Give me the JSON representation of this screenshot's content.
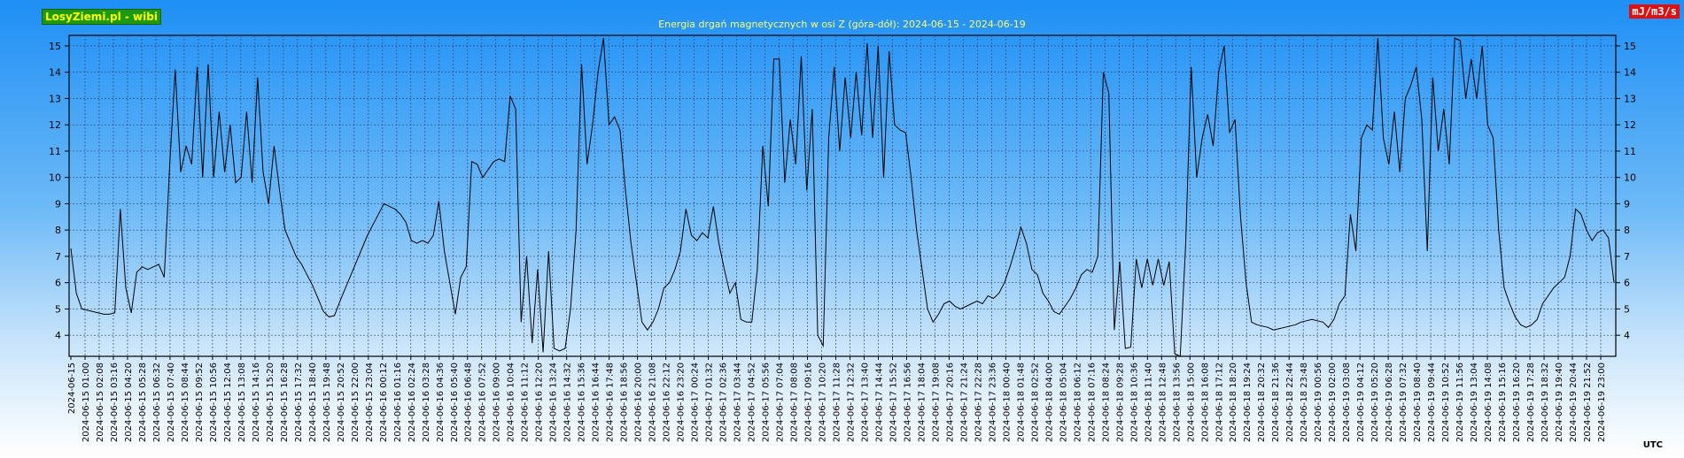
{
  "header": {
    "brand_label": "LosyZiemi.pl - wibi",
    "unit_label": "mJ/m3/s",
    "corner_label": "UTC"
  },
  "colors": {
    "line": "#000000",
    "grid": "#2a4a7a",
    "brand_bg": "#1c9a14",
    "brand_text": "#ffff00",
    "unit_bg": "#e01010",
    "title_text": "#ffff66"
  },
  "chart_data": {
    "type": "line",
    "title": "Energia drgań magnetycznych w osi Z (góra-dół): 2024-06-15 - 2024-06-19",
    "xlabel": "",
    "ylabel": "",
    "ylim": [
      3.2,
      15.4
    ],
    "yticks": [
      4,
      5,
      6,
      7,
      8,
      9,
      10,
      11,
      12,
      13,
      14,
      15
    ],
    "y_axis_right": true,
    "grid": true,
    "xticks": [
      "2024-06-15",
      "2024-06-15 01:00",
      "2024-06-15 02:08",
      "2024-06-15 03:16",
      "2024-06-15 04:20",
      "2024-06-15 05:28",
      "2024-06-15 06:32",
      "2024-06-15 07:40",
      "2024-06-15 08:44",
      "2024-06-15 09:52",
      "2024-06-15 10:56",
      "2024-06-15 12:04",
      "2024-06-15 13:08",
      "2024-06-15 14:16",
      "2024-06-15 15:20",
      "2024-06-15 16:28",
      "2024-06-15 17:32",
      "2024-06-15 18:40",
      "2024-06-15 19:48",
      "2024-06-15 20:52",
      "2024-06-15 22:00",
      "2024-06-15 23:04",
      "2024-06-16 00:12",
      "2024-06-16 01:16",
      "2024-06-16 02:24",
      "2024-06-16 03:28",
      "2024-06-16 04:36",
      "2024-06-16 05:40",
      "2024-06-16 06:48",
      "2024-06-16 07:52",
      "2024-06-16 09:00",
      "2024-06-16 10:04",
      "2024-06-16 11:12",
      "2024-06-16 12:20",
      "2024-06-16 13:24",
      "2024-06-16 14:32",
      "2024-06-16 15:36",
      "2024-06-16 16:44",
      "2024-06-16 17:48",
      "2024-06-16 18:56",
      "2024-06-16 20:00",
      "2024-06-16 21:08",
      "2024-06-16 22:12",
      "2024-06-16 23:20",
      "2024-06-17 00:24",
      "2024-06-17 01:32",
      "2024-06-17 02:36",
      "2024-06-17 03:44",
      "2024-06-17 04:52",
      "2024-06-17 05:56",
      "2024-06-17 07:04",
      "2024-06-17 08:08",
      "2024-06-17 09:16",
      "2024-06-17 10:20",
      "2024-06-17 11:28",
      "2024-06-17 12:32",
      "2024-06-17 13:40",
      "2024-06-17 14:44",
      "2024-06-17 15:52",
      "2024-06-17 16:56",
      "2024-06-17 18:04",
      "2024-06-17 19:08",
      "2024-06-17 20:16",
      "2024-06-17 21:24",
      "2024-06-17 22:28",
      "2024-06-17 23:36",
      "2024-06-18 00:40",
      "2024-06-18 01:48",
      "2024-06-18 02:52",
      "2024-06-18 04:00",
      "2024-06-18 05:04",
      "2024-06-18 06:12",
      "2024-06-18 07:16",
      "2024-06-18 08:24",
      "2024-06-18 09:28",
      "2024-06-18 10:36",
      "2024-06-18 11:40",
      "2024-06-18 12:48",
      "2024-06-18 13:56",
      "2024-06-18 15:00",
      "2024-06-18 16:08",
      "2024-06-18 17:12",
      "2024-06-18 18:20",
      "2024-06-18 19:24",
      "2024-06-18 20:32",
      "2024-06-18 21:36",
      "2024-06-18 22:44",
      "2024-06-18 23:48",
      "2024-06-19 00:56",
      "2024-06-19 02:00",
      "2024-06-19 03:08",
      "2024-06-19 04:12",
      "2024-06-19 05:20",
      "2024-06-19 06:28",
      "2024-06-19 07:32",
      "2024-06-19 08:40",
      "2024-06-19 09:44",
      "2024-06-19 10:52",
      "2024-06-19 11:56",
      "2024-06-19 13:04",
      "2024-06-19 14:08",
      "2024-06-19 15:16",
      "2024-06-19 16:20",
      "2024-06-19 17:28",
      "2024-06-19 18:32",
      "2024-06-19 19:40",
      "2024-06-19 20:44",
      "2024-06-19 21:52",
      "2024-06-19 23:00"
    ],
    "series": [
      {
        "values": [
          7.3,
          5.6,
          5.0,
          4.95,
          4.9,
          4.85,
          4.8,
          4.8,
          4.85,
          8.8,
          5.8,
          4.85,
          6.4,
          6.6,
          6.5,
          6.6,
          6.7,
          6.2,
          10.5,
          14.1,
          10.2,
          11.2,
          10.5,
          14.2,
          10.0,
          14.3,
          10.0,
          12.5,
          10.2,
          12.0,
          9.8,
          10.0,
          12.5,
          9.8,
          13.8,
          10.2,
          9.0,
          11.2,
          9.5,
          8.0,
          7.5,
          7.0,
          6.7,
          6.3,
          5.9,
          5.4,
          4.9,
          4.7,
          4.75,
          5.3,
          5.8,
          6.3,
          6.8,
          7.3,
          7.8,
          8.2,
          8.6,
          9.0,
          8.9,
          8.8,
          8.6,
          8.3,
          7.6,
          7.5,
          7.6,
          7.5,
          7.8,
          9.1,
          7.2,
          6.0,
          4.8,
          6.2,
          6.6,
          10.6,
          10.5,
          10.0,
          10.3,
          10.6,
          10.7,
          10.6,
          13.1,
          12.6,
          4.5,
          7.0,
          3.7,
          6.5,
          3.35,
          7.2,
          3.5,
          3.4,
          3.5,
          5.0,
          8.0,
          14.3,
          10.5,
          12.0,
          14.0,
          15.3,
          12.0,
          12.3,
          11.8,
          9.5,
          7.5,
          6.0,
          4.5,
          4.2,
          4.5,
          5.0,
          5.8,
          6.0,
          6.5,
          7.2,
          8.8,
          7.8,
          7.6,
          7.9,
          7.7,
          8.9,
          7.5,
          6.5,
          5.6,
          6.0,
          4.6,
          4.5,
          4.5,
          6.5,
          11.2,
          8.9,
          14.5,
          14.5,
          9.8,
          12.2,
          10.5,
          14.6,
          9.5,
          12.6,
          4.0,
          3.6,
          11.5,
          14.2,
          11.0,
          13.8,
          11.5,
          14.0,
          11.6,
          15.1,
          11.5,
          15.0,
          10.0,
          14.8,
          12.0,
          11.8,
          11.7,
          10.0,
          8.0,
          6.5,
          5.0,
          4.5,
          4.8,
          5.2,
          5.3,
          5.1,
          5.0,
          5.1,
          5.2,
          5.3,
          5.2,
          5.5,
          5.4,
          5.6,
          6.0,
          6.6,
          7.3,
          8.1,
          7.5,
          6.5,
          6.3,
          5.6,
          5.3,
          4.9,
          4.8,
          5.1,
          5.4,
          5.8,
          6.3,
          6.5,
          6.4,
          7.0,
          14.0,
          13.2,
          4.2,
          6.8,
          3.5,
          3.55,
          6.9,
          5.8,
          6.9,
          5.9,
          6.9,
          5.9,
          6.8,
          3.3,
          3.2,
          7.5,
          14.2,
          10.0,
          11.5,
          12.4,
          11.2,
          14.0,
          15.0,
          11.7,
          12.2,
          8.5,
          6.0,
          4.5,
          4.4,
          4.35,
          4.3,
          4.2,
          4.25,
          4.3,
          4.35,
          4.4,
          4.5,
          4.55,
          4.6,
          4.55,
          4.5,
          4.3,
          4.6,
          5.2,
          5.5,
          8.6,
          7.2,
          11.5,
          12.0,
          11.8,
          15.3,
          11.5,
          10.5,
          12.5,
          10.2,
          13.0,
          13.5,
          14.2,
          12.2,
          7.2,
          13.8,
          11.0,
          12.6,
          10.5,
          15.3,
          15.2,
          13.0,
          14.5,
          13.0,
          15.0,
          12.0,
          11.5,
          8.0,
          5.8,
          5.2,
          4.7,
          4.4,
          4.3,
          4.4,
          4.6,
          5.2,
          5.5,
          5.8,
          6.0,
          6.2,
          7.0,
          8.8,
          8.6,
          8.0,
          7.6,
          7.9,
          8.0,
          7.7,
          6.0
        ]
      }
    ]
  }
}
